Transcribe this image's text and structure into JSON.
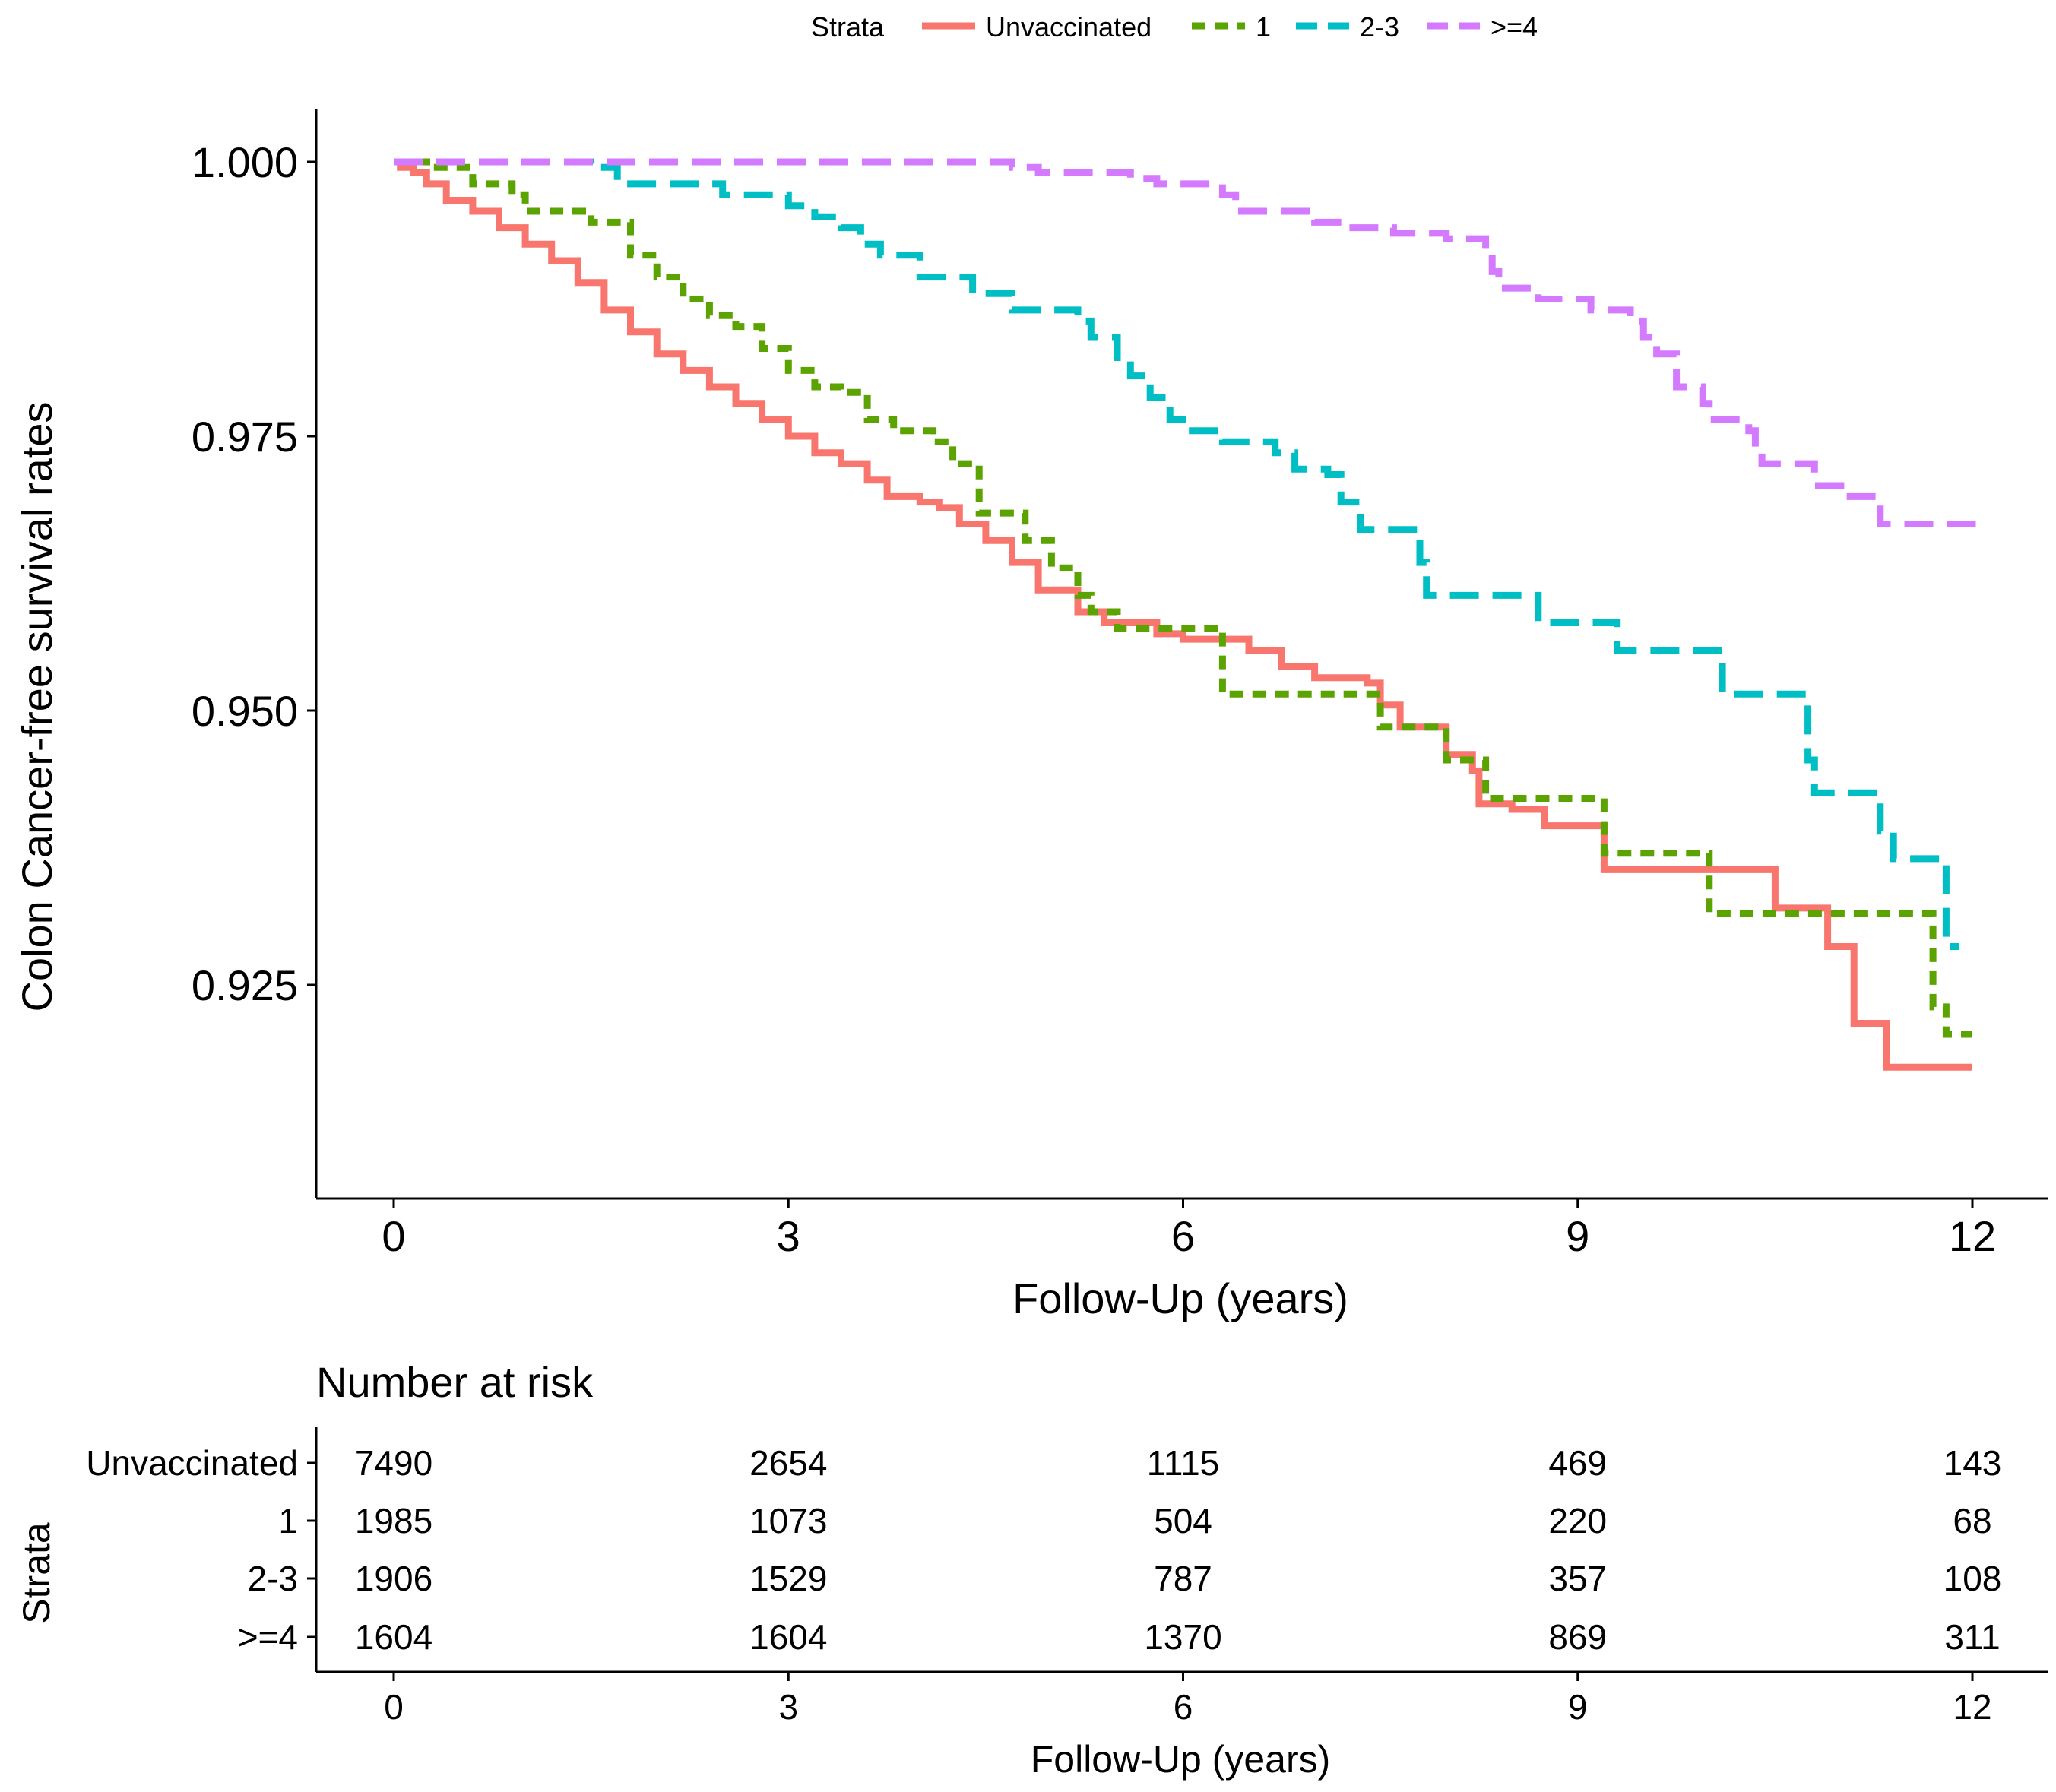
{
  "legend": {
    "title": "Strata",
    "placement": "top",
    "entries": [
      "Unvaccinated",
      "1",
      "2-3",
      ">=4"
    ]
  },
  "colors": {
    "Unvaccinated": "#f8766d",
    "1": "#5ba300",
    "2-3": "#00bfc4",
    ">=4": "#d37aff"
  },
  "chart_data": [
    {
      "type": "line",
      "subtype": "kaplan-meier step",
      "ylabel": "Colon Cancer-free survival rates",
      "xlabel": "Follow-Up (years)",
      "xlim": [
        0,
        12
      ],
      "ylim": [
        0.9155,
        1.0025
      ],
      "x_ticks": [
        0,
        3,
        6,
        9,
        12
      ],
      "y_ticks": [
        0.925,
        0.95,
        0.975,
        1.0
      ],
      "y_tick_labels": [
        "0.925",
        "0.950",
        "0.975",
        "1.000"
      ],
      "grid": false,
      "series": [
        {
          "name": "Unvaccinated",
          "line_style": "solid",
          "points": [
            [
              0,
              1.0
            ],
            [
              0.05,
              0.9995
            ],
            [
              0.15,
              0.999
            ],
            [
              0.25,
              0.998
            ],
            [
              0.4,
              0.9965
            ],
            [
              0.6,
              0.9955
            ],
            [
              0.8,
              0.994
            ],
            [
              1.0,
              0.9925
            ],
            [
              1.2,
              0.991
            ],
            [
              1.4,
              0.989
            ],
            [
              1.6,
              0.9865
            ],
            [
              1.8,
              0.9845
            ],
            [
              2.0,
              0.9825
            ],
            [
              2.2,
              0.981
            ],
            [
              2.4,
              0.9795
            ],
            [
              2.6,
              0.978
            ],
            [
              2.8,
              0.9765
            ],
            [
              3.0,
              0.975
            ],
            [
              3.2,
              0.9735
            ],
            [
              3.4,
              0.9725
            ],
            [
              3.6,
              0.971
            ],
            [
              3.75,
              0.9695
            ],
            [
              4.0,
              0.969
            ],
            [
              4.15,
              0.9685
            ],
            [
              4.3,
              0.967
            ],
            [
              4.5,
              0.9655
            ],
            [
              4.7,
              0.9635
            ],
            [
              4.9,
              0.961
            ],
            [
              5.2,
              0.959
            ],
            [
              5.4,
              0.958
            ],
            [
              5.8,
              0.957
            ],
            [
              6.0,
              0.9565
            ],
            [
              6.5,
              0.9555
            ],
            [
              6.75,
              0.954
            ],
            [
              7.0,
              0.953
            ],
            [
              7.4,
              0.9525
            ],
            [
              7.5,
              0.9505
            ],
            [
              7.65,
              0.9485
            ],
            [
              8.0,
              0.946
            ],
            [
              8.2,
              0.9445
            ],
            [
              8.25,
              0.9415
            ],
            [
              8.5,
              0.941
            ],
            [
              8.75,
              0.9395
            ],
            [
              9.2,
              0.9355
            ],
            [
              10.5,
              0.932
            ],
            [
              10.9,
              0.9285
            ],
            [
              11.1,
              0.9215
            ],
            [
              11.35,
              0.9175
            ],
            [
              12.0,
              0.9175
            ]
          ]
        },
        {
          "name": "1",
          "line_style": "dashed",
          "points": [
            [
              0,
              1.0
            ],
            [
              0.3,
              0.9995
            ],
            [
              0.6,
              0.998
            ],
            [
              0.9,
              0.997
            ],
            [
              1.0,
              0.9955
            ],
            [
              1.5,
              0.9945
            ],
            [
              1.8,
              0.9915
            ],
            [
              2.0,
              0.9895
            ],
            [
              2.2,
              0.9875
            ],
            [
              2.4,
              0.986
            ],
            [
              2.6,
              0.985
            ],
            [
              2.8,
              0.983
            ],
            [
              3.0,
              0.981
            ],
            [
              3.2,
              0.9795
            ],
            [
              3.4,
              0.979
            ],
            [
              3.6,
              0.9765
            ],
            [
              3.8,
              0.9755
            ],
            [
              4.1,
              0.9745
            ],
            [
              4.25,
              0.9725
            ],
            [
              4.45,
              0.968
            ],
            [
              4.8,
              0.9655
            ],
            [
              5.0,
              0.963
            ],
            [
              5.2,
              0.9605
            ],
            [
              5.3,
              0.959
            ],
            [
              5.5,
              0.9575
            ],
            [
              6.3,
              0.9515
            ],
            [
              7.5,
              0.9485
            ],
            [
              8.0,
              0.9455
            ],
            [
              8.3,
              0.942
            ],
            [
              9.2,
              0.937
            ],
            [
              10.0,
              0.9315
            ],
            [
              11.7,
              0.923
            ],
            [
              11.8,
              0.9205
            ],
            [
              12.0,
              0.9205
            ]
          ]
        },
        {
          "name": "2-3",
          "line_style": "dashed",
          "points": [
            [
              0,
              1.0
            ],
            [
              1.5,
              0.9995
            ],
            [
              1.7,
              0.998
            ],
            [
              2.5,
              0.997
            ],
            [
              3.0,
              0.996
            ],
            [
              3.2,
              0.995
            ],
            [
              3.4,
              0.994
            ],
            [
              3.55,
              0.9925
            ],
            [
              3.7,
              0.9915
            ],
            [
              4.0,
              0.9895
            ],
            [
              4.4,
              0.988
            ],
            [
              4.7,
              0.9865
            ],
            [
              5.2,
              0.9855
            ],
            [
              5.3,
              0.984
            ],
            [
              5.5,
              0.9815
            ],
            [
              5.6,
              0.9805
            ],
            [
              5.75,
              0.9785
            ],
            [
              5.9,
              0.9765
            ],
            [
              6.0,
              0.9755
            ],
            [
              6.3,
              0.9745
            ],
            [
              6.7,
              0.9735
            ],
            [
              6.85,
              0.972
            ],
            [
              7.1,
              0.9715
            ],
            [
              7.2,
              0.969
            ],
            [
              7.35,
              0.9665
            ],
            [
              7.8,
              0.9635
            ],
            [
              7.85,
              0.9605
            ],
            [
              8.7,
              0.958
            ],
            [
              9.3,
              0.9555
            ],
            [
              10.1,
              0.9515
            ],
            [
              10.75,
              0.9455
            ],
            [
              10.8,
              0.9425
            ],
            [
              11.3,
              0.939
            ],
            [
              11.4,
              0.9365
            ],
            [
              11.8,
              0.9285
            ],
            [
              11.9,
              0.9285
            ]
          ]
        },
        {
          "name": ">=4",
          "line_style": "dashed",
          "points": [
            [
              0,
              1.0
            ],
            [
              4.7,
              0.9995
            ],
            [
              4.9,
              0.999
            ],
            [
              5.6,
              0.9985
            ],
            [
              5.8,
              0.998
            ],
            [
              6.3,
              0.997
            ],
            [
              6.4,
              0.9955
            ],
            [
              7.0,
              0.9945
            ],
            [
              7.25,
              0.994
            ],
            [
              7.6,
              0.9935
            ],
            [
              8.0,
              0.993
            ],
            [
              8.3,
              0.992
            ],
            [
              8.35,
              0.99
            ],
            [
              8.4,
              0.9885
            ],
            [
              8.7,
              0.9875
            ],
            [
              9.1,
              0.9865
            ],
            [
              9.4,
              0.9855
            ],
            [
              9.5,
              0.984
            ],
            [
              9.6,
              0.9825
            ],
            [
              9.75,
              0.9795
            ],
            [
              9.95,
              0.978
            ],
            [
              10.0,
              0.9765
            ],
            [
              10.3,
              0.9755
            ],
            [
              10.35,
              0.9735
            ],
            [
              10.4,
              0.9725
            ],
            [
              10.8,
              0.9705
            ],
            [
              11.0,
              0.9695
            ],
            [
              11.3,
              0.967
            ],
            [
              12.0,
              0.9675
            ]
          ]
        }
      ]
    },
    {
      "type": "table",
      "title": "Number at risk",
      "ylabel": "Strata",
      "xlabel": "Follow-Up (years)",
      "x_ticks": [
        0,
        3,
        6,
        9,
        12
      ],
      "rows": [
        {
          "label": "Unvaccinated",
          "values": [
            7490,
            2654,
            1115,
            469,
            143
          ]
        },
        {
          "label": "1",
          "values": [
            1985,
            1073,
            504,
            220,
            68
          ]
        },
        {
          "label": "2-3",
          "values": [
            1906,
            1529,
            787,
            357,
            108
          ]
        },
        {
          "label": ">=4",
          "values": [
            1604,
            1604,
            1370,
            869,
            311
          ]
        }
      ]
    }
  ]
}
